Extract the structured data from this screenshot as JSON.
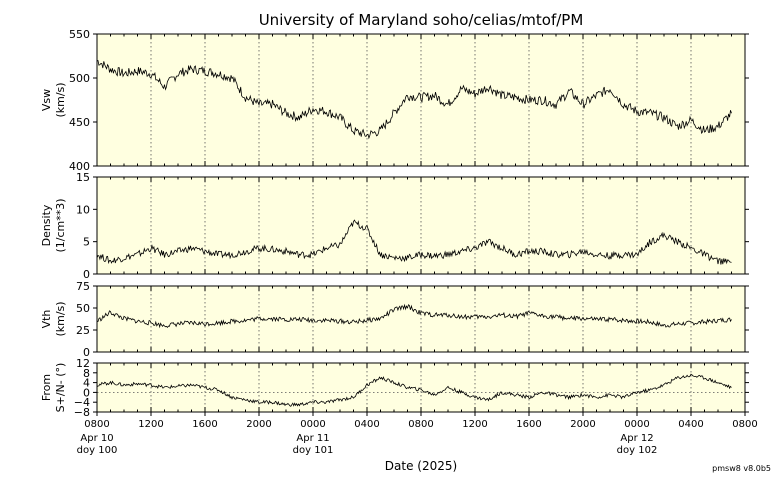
{
  "title": "University of Maryland  soho/celias/mtof/PM",
  "footer": "pmsw8 v8.0b5",
  "colors": {
    "panel_bg": "#ffffe0",
    "line": "#000000",
    "grid": "#555555"
  },
  "chart_data": {
    "type": "line",
    "xlabel": "Date (2025)",
    "x_range": [
      "2025-04-10 08:00",
      "2025-04-12 08:00"
    ],
    "x_tick_labels": [
      "0800",
      "1200",
      "1600",
      "2000",
      "0000",
      "0400",
      "0800",
      "1200",
      "1600",
      "2000",
      "0000",
      "0400",
      "0800"
    ],
    "x_tick_hours": [
      0,
      4,
      8,
      12,
      16,
      20,
      24,
      28,
      32,
      36,
      40,
      44,
      48
    ],
    "date_labels": [
      {
        "hour": 0,
        "date": "Apr 10",
        "doy": "doy 100"
      },
      {
        "hour": 16,
        "date": "Apr 11",
        "doy": "doy 101"
      },
      {
        "hour": 40,
        "date": "Apr 12",
        "doy": "doy 102"
      }
    ],
    "grid": "vertical dotted every 4 hours",
    "panels": [
      {
        "ylabel": [
          "Vsw",
          "(km/s)"
        ],
        "ylim": [
          400,
          550
        ],
        "yticks": [
          400,
          450,
          500,
          550
        ],
        "x_hours": [
          0,
          1,
          2,
          3,
          4,
          5,
          6,
          7,
          8,
          9,
          10,
          11,
          12,
          13,
          14,
          15,
          16,
          17,
          18,
          19,
          20,
          21,
          22,
          23,
          24,
          25,
          26,
          27,
          28,
          29,
          30,
          31,
          32,
          33,
          34,
          35,
          36,
          37,
          38,
          39,
          40,
          41,
          42,
          43,
          44,
          45,
          46,
          47
        ],
        "values": [
          520,
          510,
          505,
          508,
          505,
          490,
          505,
          510,
          508,
          505,
          500,
          478,
          470,
          470,
          460,
          455,
          465,
          462,
          455,
          440,
          435,
          440,
          460,
          480,
          478,
          480,
          470,
          488,
          482,
          490,
          480,
          478,
          475,
          475,
          470,
          485,
          470,
          480,
          488,
          470,
          462,
          460,
          455,
          445,
          452,
          440,
          445,
          460
        ]
      },
      {
        "ylabel": [
          "Density",
          "(1/cm**3)"
        ],
        "ylim": [
          0,
          15
        ],
        "yticks": [
          0,
          5,
          10,
          15
        ],
        "x_hours": [
          0,
          1,
          2,
          3,
          4,
          5,
          6,
          7,
          8,
          9,
          10,
          11,
          12,
          13,
          14,
          15,
          16,
          17,
          18,
          19,
          20,
          21,
          22,
          23,
          24,
          25,
          26,
          27,
          28,
          29,
          30,
          31,
          32,
          33,
          34,
          35,
          36,
          37,
          38,
          39,
          40,
          41,
          42,
          43,
          44,
          45,
          46,
          47
        ],
        "values": [
          3,
          2,
          2.5,
          3,
          4,
          3,
          3.5,
          4,
          3.5,
          3,
          3,
          3.5,
          4,
          3.8,
          3.5,
          3,
          3,
          4,
          4.5,
          8,
          7,
          3,
          2.5,
          2.5,
          3,
          2.8,
          3,
          3.5,
          4,
          5,
          4,
          3,
          3.5,
          3.5,
          3,
          3,
          3.5,
          3,
          2.8,
          3,
          3,
          5,
          6,
          5,
          4,
          3,
          2,
          1.8
        ]
      },
      {
        "ylabel": [
          "Vth",
          "(km/s)"
        ],
        "ylim": [
          0,
          75
        ],
        "yticks": [
          0,
          25,
          50,
          75
        ],
        "x_hours": [
          0,
          1,
          2,
          3,
          4,
          5,
          6,
          7,
          8,
          9,
          10,
          11,
          12,
          13,
          14,
          15,
          16,
          17,
          18,
          19,
          20,
          21,
          22,
          23,
          24,
          25,
          26,
          27,
          28,
          29,
          30,
          31,
          32,
          33,
          34,
          35,
          36,
          37,
          38,
          39,
          40,
          41,
          42,
          43,
          44,
          45,
          46,
          47
        ],
        "values": [
          35,
          45,
          38,
          35,
          33,
          30,
          32,
          33,
          32,
          33,
          35,
          36,
          38,
          38,
          37,
          37,
          36,
          36,
          35,
          34,
          36,
          38,
          48,
          52,
          44,
          42,
          42,
          40,
          40,
          40,
          42,
          40,
          44,
          41,
          40,
          38,
          38,
          37,
          37,
          36,
          35,
          34,
          30,
          32,
          33,
          34,
          36,
          37
        ]
      },
      {
        "ylabel": [
          "From",
          "S+/N- (°)"
        ],
        "ylim": [
          -8,
          12
        ],
        "yticks": [
          -8,
          -4,
          0,
          4,
          8,
          12
        ],
        "yticklabels": [
          "−8",
          "−4",
          "0",
          "4",
          "8",
          "12"
        ],
        "zero_line": true,
        "x_hours": [
          0,
          1,
          2,
          3,
          4,
          5,
          6,
          7,
          8,
          9,
          10,
          11,
          12,
          13,
          14,
          15,
          16,
          17,
          18,
          19,
          20,
          21,
          22,
          23,
          24,
          25,
          26,
          27,
          28,
          29,
          30,
          31,
          32,
          33,
          34,
          35,
          36,
          37,
          38,
          39,
          40,
          41,
          42,
          43,
          44,
          45,
          46,
          47
        ],
        "values": [
          3,
          4,
          3,
          3.5,
          3,
          2,
          2.5,
          3,
          2,
          1,
          -2,
          -3,
          -4,
          -4,
          -5,
          -5,
          -4,
          -4,
          -3,
          -2,
          3,
          6,
          4,
          2,
          1,
          -1,
          2,
          0,
          -2,
          -3,
          0,
          -1,
          -2,
          0,
          -1,
          -2,
          -1,
          -2,
          -1,
          -2,
          0,
          1,
          3,
          6,
          7,
          6,
          4,
          2
        ]
      }
    ]
  }
}
